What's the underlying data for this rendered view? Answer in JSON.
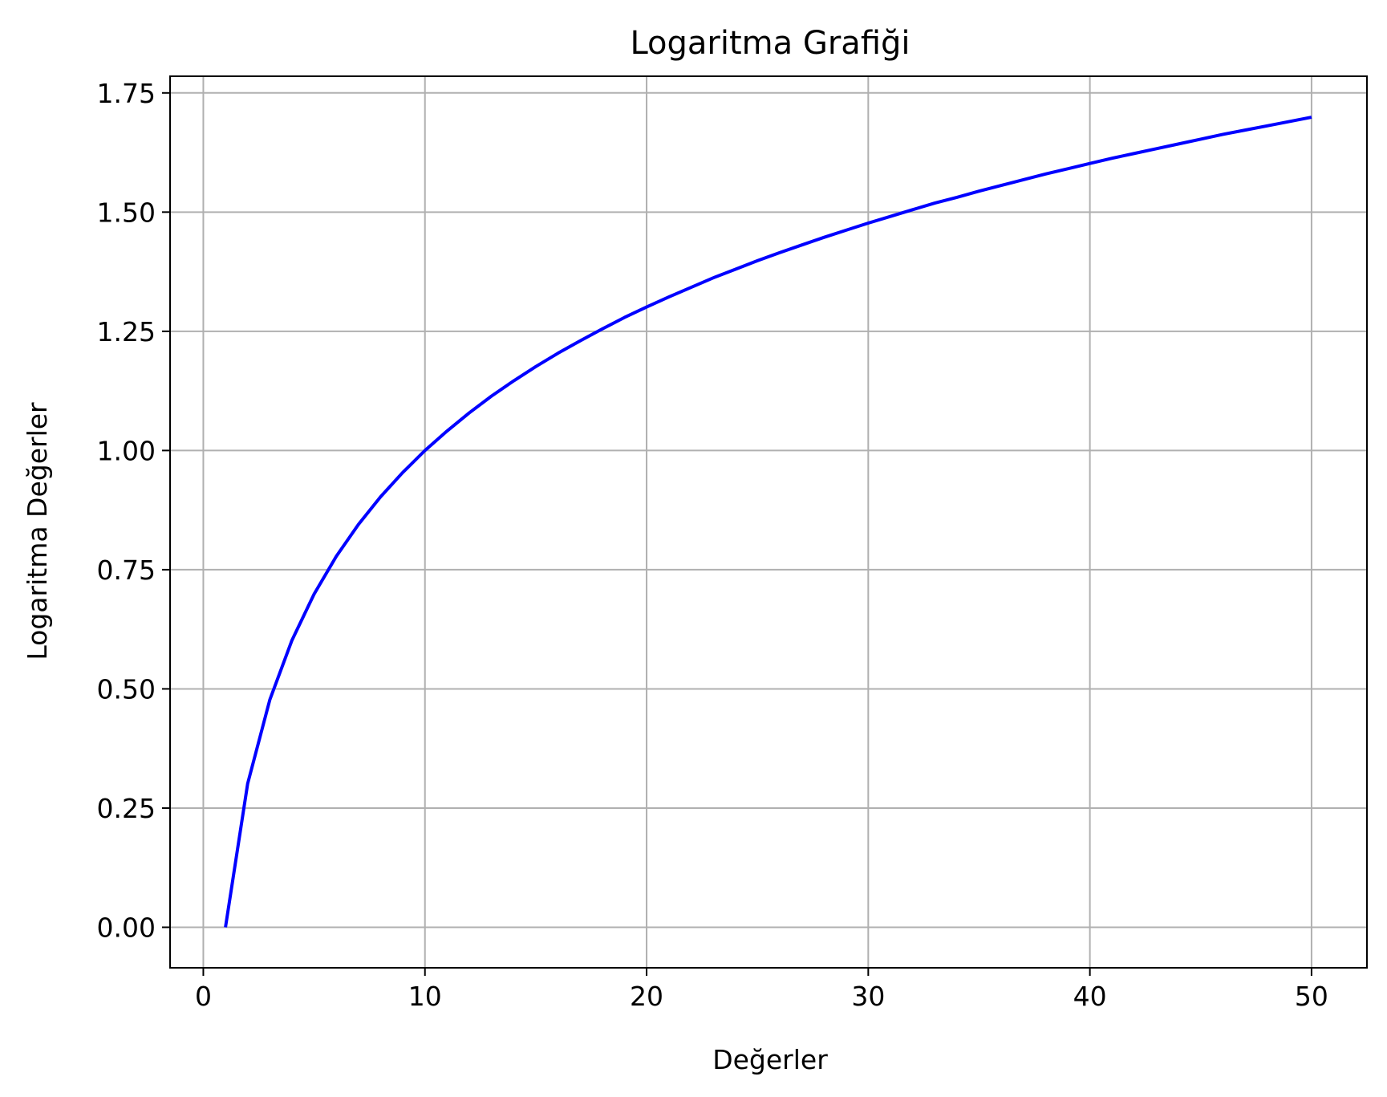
{
  "chart_data": {
    "type": "line",
    "title": "Logaritma Grafiği",
    "xlabel": "Değerler",
    "ylabel": "Logaritma Değerler",
    "xlim": [
      -1.5,
      52.5
    ],
    "ylim": [
      -0.085,
      1.785
    ],
    "xticks": [
      0,
      10,
      20,
      30,
      40,
      50
    ],
    "xtick_labels": [
      "0",
      "10",
      "20",
      "30",
      "40",
      "50"
    ],
    "yticks": [
      0.0,
      0.25,
      0.5,
      0.75,
      1.0,
      1.25,
      1.5,
      1.75
    ],
    "ytick_labels": [
      "0.00",
      "0.25",
      "0.50",
      "0.75",
      "1.00",
      "1.25",
      "1.50",
      "1.75"
    ],
    "grid": true,
    "legend": "none",
    "series": [
      {
        "color": "#0000ff",
        "x": [
          1,
          2,
          3,
          4,
          5,
          6,
          7,
          8,
          9,
          10,
          11,
          12,
          13,
          14,
          15,
          16,
          17,
          18,
          19,
          20,
          21,
          22,
          23,
          24,
          25,
          26,
          27,
          28,
          29,
          30,
          31,
          32,
          33,
          34,
          35,
          36,
          37,
          38,
          39,
          40,
          41,
          42,
          43,
          44,
          45,
          46,
          47,
          48,
          49,
          50
        ],
        "y": [
          0.0,
          0.301,
          0.477,
          0.602,
          0.699,
          0.778,
          0.845,
          0.903,
          0.954,
          1.0,
          1.041,
          1.079,
          1.114,
          1.146,
          1.176,
          1.204,
          1.23,
          1.255,
          1.279,
          1.301,
          1.322,
          1.342,
          1.362,
          1.38,
          1.398,
          1.415,
          1.431,
          1.447,
          1.462,
          1.477,
          1.491,
          1.505,
          1.519,
          1.531,
          1.544,
          1.556,
          1.568,
          1.58,
          1.591,
          1.602,
          1.613,
          1.623,
          1.633,
          1.643,
          1.653,
          1.663,
          1.672,
          1.681,
          1.69,
          1.699
        ]
      }
    ]
  }
}
